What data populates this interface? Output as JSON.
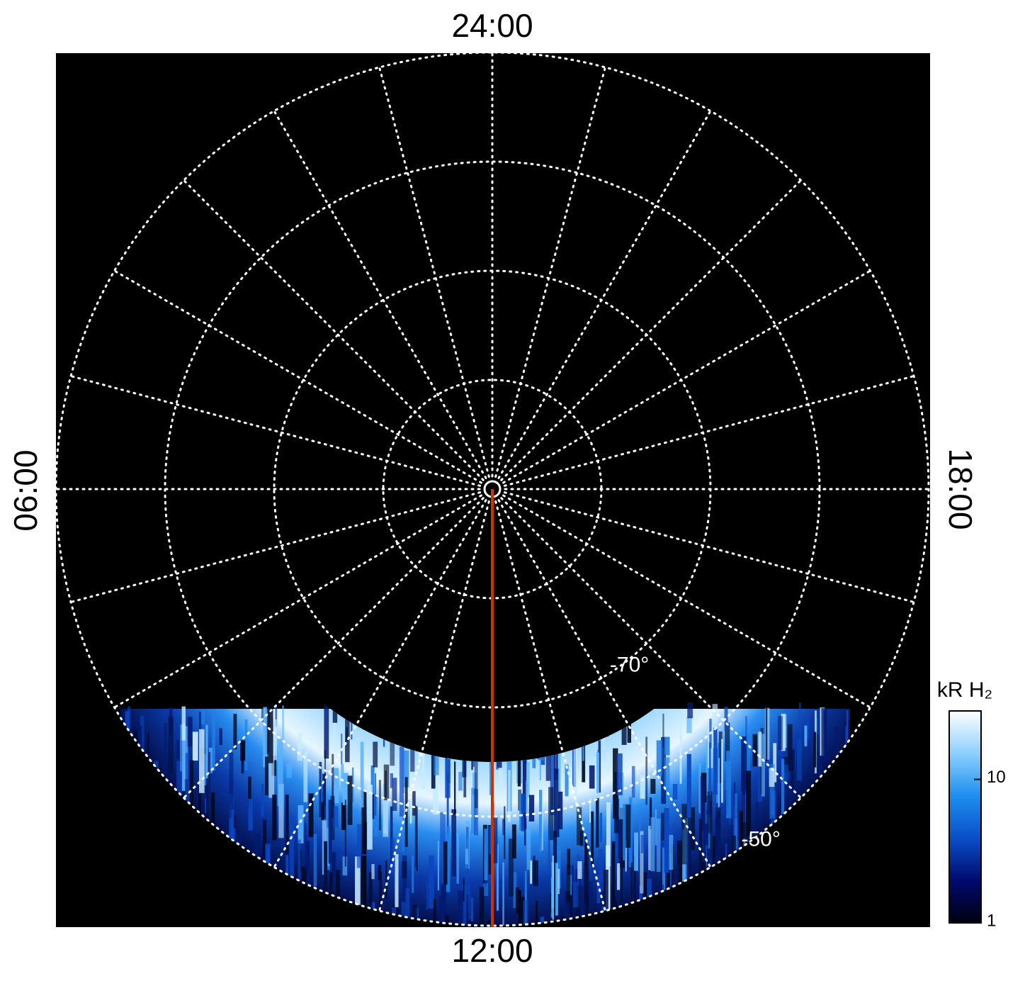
{
  "chart_data": {
    "type": "polar-map",
    "hour_labels": {
      "top": "24:00",
      "left": "06:00",
      "right": "18:00",
      "bottom": "12:00"
    },
    "rlim": [
      -90,
      -50
    ],
    "rgrid": [
      -80,
      -70,
      -60,
      -50
    ],
    "rlabels": [
      {
        "value": -70,
        "label": "-70°"
      },
      {
        "value": -50,
        "label": "-50°"
      }
    ],
    "grid_color": "#ffffff",
    "track_color": "#cc3300",
    "colorbar": {
      "title": "kR H₂",
      "scale": "log",
      "lim": [
        1,
        30
      ],
      "ticks": [
        1,
        10
      ],
      "colors": [
        "#000010",
        "#000a6e",
        "#0a4fc8",
        "#1e8ff0",
        "#8cd0ff",
        "#ffffff"
      ]
    }
  }
}
